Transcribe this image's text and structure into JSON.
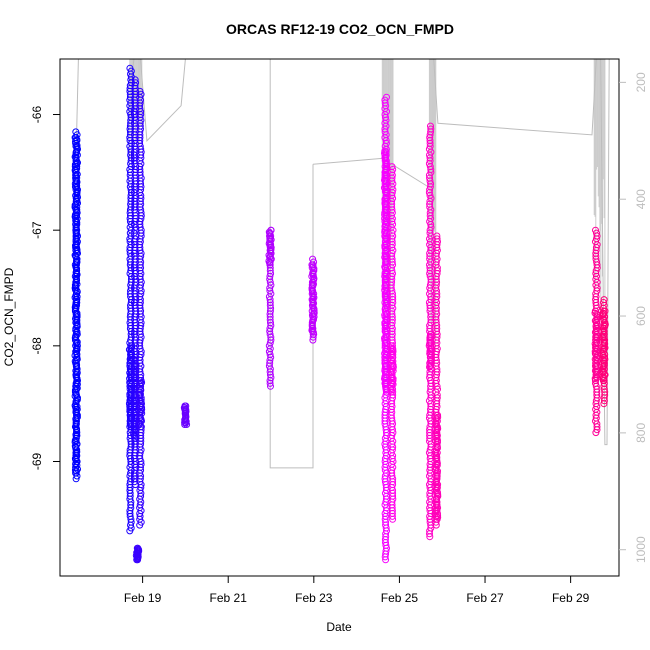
{
  "chart_data": {
    "type": "scatter",
    "title": "ORCAS RF12-19 CO2_OCN_FMPD",
    "xlabel": "Date",
    "ylabel": "CO2_OCN_FMPD",
    "xlim": [
      17.07,
      30.13
    ],
    "ylim": [
      -69.99,
      -65.52
    ],
    "x_ticks": [
      {
        "value": 19,
        "label": "Feb 19"
      },
      {
        "value": 21,
        "label": "Feb 21"
      },
      {
        "value": 23,
        "label": "Feb 23"
      },
      {
        "value": 25,
        "label": "Feb 25"
      },
      {
        "value": 27,
        "label": "Feb 27"
      },
      {
        "value": 29,
        "label": "Feb 29"
      }
    ],
    "y_ticks": [
      -66,
      -67,
      -68,
      -69
    ],
    "y2_axis": {
      "range": [
        1045,
        160
      ],
      "ticks": [
        200,
        400,
        600,
        800,
        1000
      ],
      "color": "#bdbdbd"
    },
    "series": [
      {
        "color": "#0000ff",
        "x": 17.45,
        "y_range": [
          -69.15,
          -66.15
        ],
        "dense_range": [
          -69.1,
          -66.2
        ]
      },
      {
        "color": "#1c00ff",
        "x": 18.72,
        "y_range": [
          -69.6,
          -65.6
        ],
        "dense_range": [
          -68.7,
          -68.0
        ]
      },
      {
        "color": "#2800ff",
        "x": 18.82,
        "y_range": [
          -69.2,
          -65.7
        ],
        "dense_range": [
          -68.8,
          -68.1
        ]
      },
      {
        "color": "#3200ff",
        "x": 18.95,
        "y_range": [
          -69.55,
          -65.8
        ],
        "dense_range": [
          -68.7,
          -68.3
        ]
      },
      {
        "color": "#3a00ff",
        "x": 18.88,
        "y_range": [
          -69.85,
          -69.75
        ],
        "dense_range": [
          -69.85,
          -69.75
        ]
      },
      {
        "color": "#6a00ff",
        "x": 20.0,
        "y_range": [
          -68.68,
          -68.52
        ],
        "dense_range": [
          -68.68,
          -68.52
        ]
      },
      {
        "color": "#b000ff",
        "x": 21.98,
        "y_range": [
          -68.35,
          -67.0
        ],
        "dense_range": [
          -67.3,
          -67.0
        ]
      },
      {
        "color": "#c000ff",
        "x": 22.98,
        "y_range": [
          -67.95,
          -67.25
        ],
        "dense_range": [
          -67.9,
          -67.3
        ]
      },
      {
        "color": "#f500ff",
        "x": 24.68,
        "y_range": [
          -69.85,
          -65.85
        ],
        "dense_range": [
          -68.4,
          -66.3
        ]
      },
      {
        "color": "#ff00ea",
        "x": 24.83,
        "y_range": [
          -69.5,
          -66.45
        ],
        "dense_range": [
          -68.4,
          -68.0
        ]
      },
      {
        "color": "#ff00c8",
        "x": 25.72,
        "y_range": [
          -69.65,
          -66.1
        ],
        "dense_range": [
          -68.2,
          -67.9
        ]
      },
      {
        "color": "#ff00b8",
        "x": 25.87,
        "y_range": [
          -69.55,
          -67.05
        ],
        "dense_range": [
          -69.5,
          -68.6
        ]
      },
      {
        "color": "#ff0096",
        "x": 29.6,
        "y_range": [
          -68.75,
          -67.0
        ],
        "dense_range": [
          -68.3,
          -67.7
        ]
      },
      {
        "color": "#ff0078",
        "x": 29.78,
        "y_range": [
          -68.5,
          -67.6
        ],
        "dense_range": [
          -68.3,
          -67.7
        ]
      }
    ],
    "pressure_segments": [
      {
        "points": [
          [
            17.45,
            310
          ],
          [
            17.5,
            160
          ],
          [
            17.9,
            160
          ]
        ]
      },
      {
        "points": [
          [
            18.72,
            200
          ],
          [
            18.8,
            160
          ],
          [
            18.95,
            160
          ],
          [
            19.1,
            300
          ],
          [
            19.9,
            240
          ],
          [
            20.0,
            160
          ]
        ]
      },
      {
        "points": [
          [
            20.2,
            160
          ],
          [
            21.98,
            160
          ],
          [
            21.98,
            350
          ],
          [
            21.98,
            860
          ],
          [
            22.98,
            860
          ],
          [
            22.98,
            340
          ]
        ]
      },
      {
        "points": [
          [
            22.98,
            340
          ],
          [
            24.6,
            330
          ],
          [
            25.7,
            380
          ]
        ]
      },
      {
        "points": [
          [
            25.8,
            160
          ],
          [
            25.9,
            270
          ],
          [
            29.5,
            290
          ],
          [
            29.6,
            160
          ]
        ]
      },
      {
        "points": [
          [
            29.7,
            160
          ],
          [
            29.8,
            820
          ],
          [
            29.85,
            820
          ],
          [
            29.9,
            160
          ]
        ]
      }
    ],
    "pressure_dense": [
      {
        "x": [
          24.6,
          24.85
        ],
        "p": [
          160,
          720
        ]
      },
      {
        "x": [
          25.7,
          25.85
        ],
        "p": [
          160,
          690
        ]
      },
      {
        "x": [
          29.55,
          29.8
        ],
        "p": [
          160,
          610
        ]
      },
      {
        "x": [
          18.7,
          18.98
        ],
        "p": [
          160,
          360
        ]
      }
    ],
    "grid": false,
    "legend": "none"
  }
}
